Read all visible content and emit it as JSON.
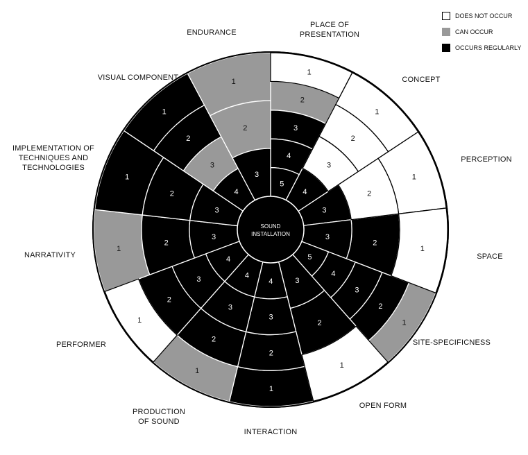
{
  "center_label": [
    "SOUND",
    "INSTALLATION"
  ],
  "legend": [
    {
      "state": "none",
      "label": "DOES NOT OCCUR",
      "color": "#ffffff"
    },
    {
      "state": "can",
      "label": "CAN OCCUR",
      "color": "#999999"
    },
    {
      "state": "reg",
      "label": "OCCURS REGULARLY",
      "color": "#000000"
    }
  ],
  "categories": [
    {
      "name": [
        "PLACE OF",
        "PRESENTATION"
      ],
      "levels": [
        "none",
        "can",
        "reg",
        "reg",
        "reg"
      ]
    },
    {
      "name": [
        "CONCEPT"
      ],
      "levels": [
        "none",
        "none",
        "none",
        "reg"
      ]
    },
    {
      "name": [
        "PERCEPTION"
      ],
      "levels": [
        "none",
        "none",
        "reg"
      ]
    },
    {
      "name": [
        "SPACE"
      ],
      "levels": [
        "none",
        "reg",
        "reg"
      ]
    },
    {
      "name": [
        "SITE-SPECIFICNESS"
      ],
      "levels": [
        "can",
        "reg",
        "reg",
        "reg",
        "reg"
      ]
    },
    {
      "name": [
        "OPEN FORM"
      ],
      "levels": [
        "none",
        "reg",
        "reg"
      ]
    },
    {
      "name": [
        "INTERACTION"
      ],
      "levels": [
        "reg",
        "reg",
        "reg",
        "reg"
      ]
    },
    {
      "name": [
        "PRODUCTION",
        "OF SOUND"
      ],
      "levels": [
        "can",
        "reg",
        "reg",
        "reg"
      ]
    },
    {
      "name": [
        "PERFORMER"
      ],
      "levels": [
        "none",
        "reg",
        "reg",
        "reg"
      ]
    },
    {
      "name": [
        "NARRATIVITY"
      ],
      "levels": [
        "can",
        "reg",
        "reg"
      ]
    },
    {
      "name": [
        "IMPLEMENTATION OF",
        "TECHNIQUES AND",
        "TECHNOLOGIES"
      ],
      "levels": [
        "reg",
        "reg",
        "reg"
      ]
    },
    {
      "name": [
        "VISUAL COMPONENT"
      ],
      "levels": [
        "reg",
        "reg",
        "can",
        "reg"
      ]
    },
    {
      "name": [
        "ENDURANCE"
      ],
      "levels": [
        "can",
        "can",
        "reg"
      ]
    }
  ]
}
